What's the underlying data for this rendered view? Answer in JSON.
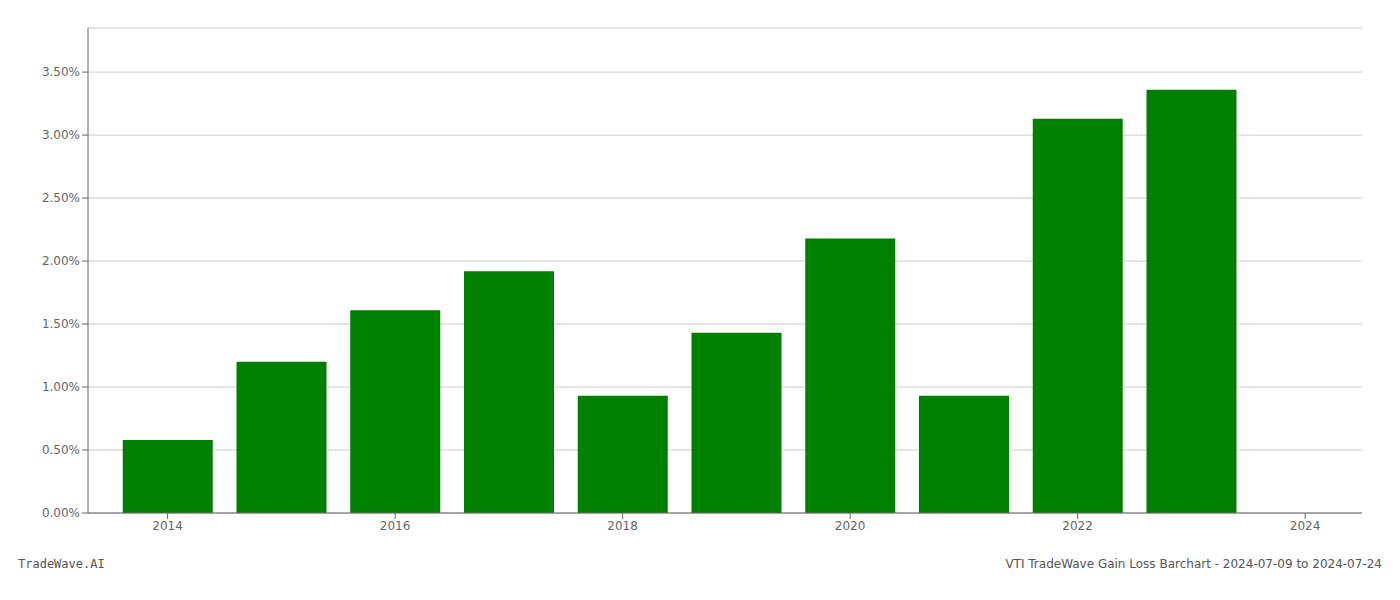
{
  "chart_data": {
    "type": "bar",
    "x": [
      2014,
      2015,
      2016,
      2017,
      2018,
      2019,
      2020,
      2021,
      2022,
      2023
    ],
    "values": [
      0.0058,
      0.012,
      0.0161,
      0.0192,
      0.0093,
      0.0143,
      0.0218,
      0.0093,
      0.0313,
      0.0336
    ],
    "color": "#008000",
    "xlim": [
      2013.3,
      2024.5
    ],
    "xticks": [
      2014,
      2016,
      2018,
      2020,
      2022,
      2024
    ],
    "ylim": [
      0,
      0.0385
    ],
    "yticks": [
      {
        "value": 0.0,
        "label": "0.00%"
      },
      {
        "value": 0.005,
        "label": "0.50%"
      },
      {
        "value": 0.01,
        "label": "1.00%"
      },
      {
        "value": 0.015,
        "label": "1.50%"
      },
      {
        "value": 0.02,
        "label": "2.00%"
      },
      {
        "value": 0.025,
        "label": "2.50%"
      },
      {
        "value": 0.03,
        "label": "3.00%"
      },
      {
        "value": 0.035,
        "label": "3.50%"
      }
    ],
    "grid": true,
    "annotations": [
      "TradeWave.AI",
      "VTI TradeWave Gain Loss Barchart - 2024-07-09 to 2024-07-24"
    ]
  }
}
